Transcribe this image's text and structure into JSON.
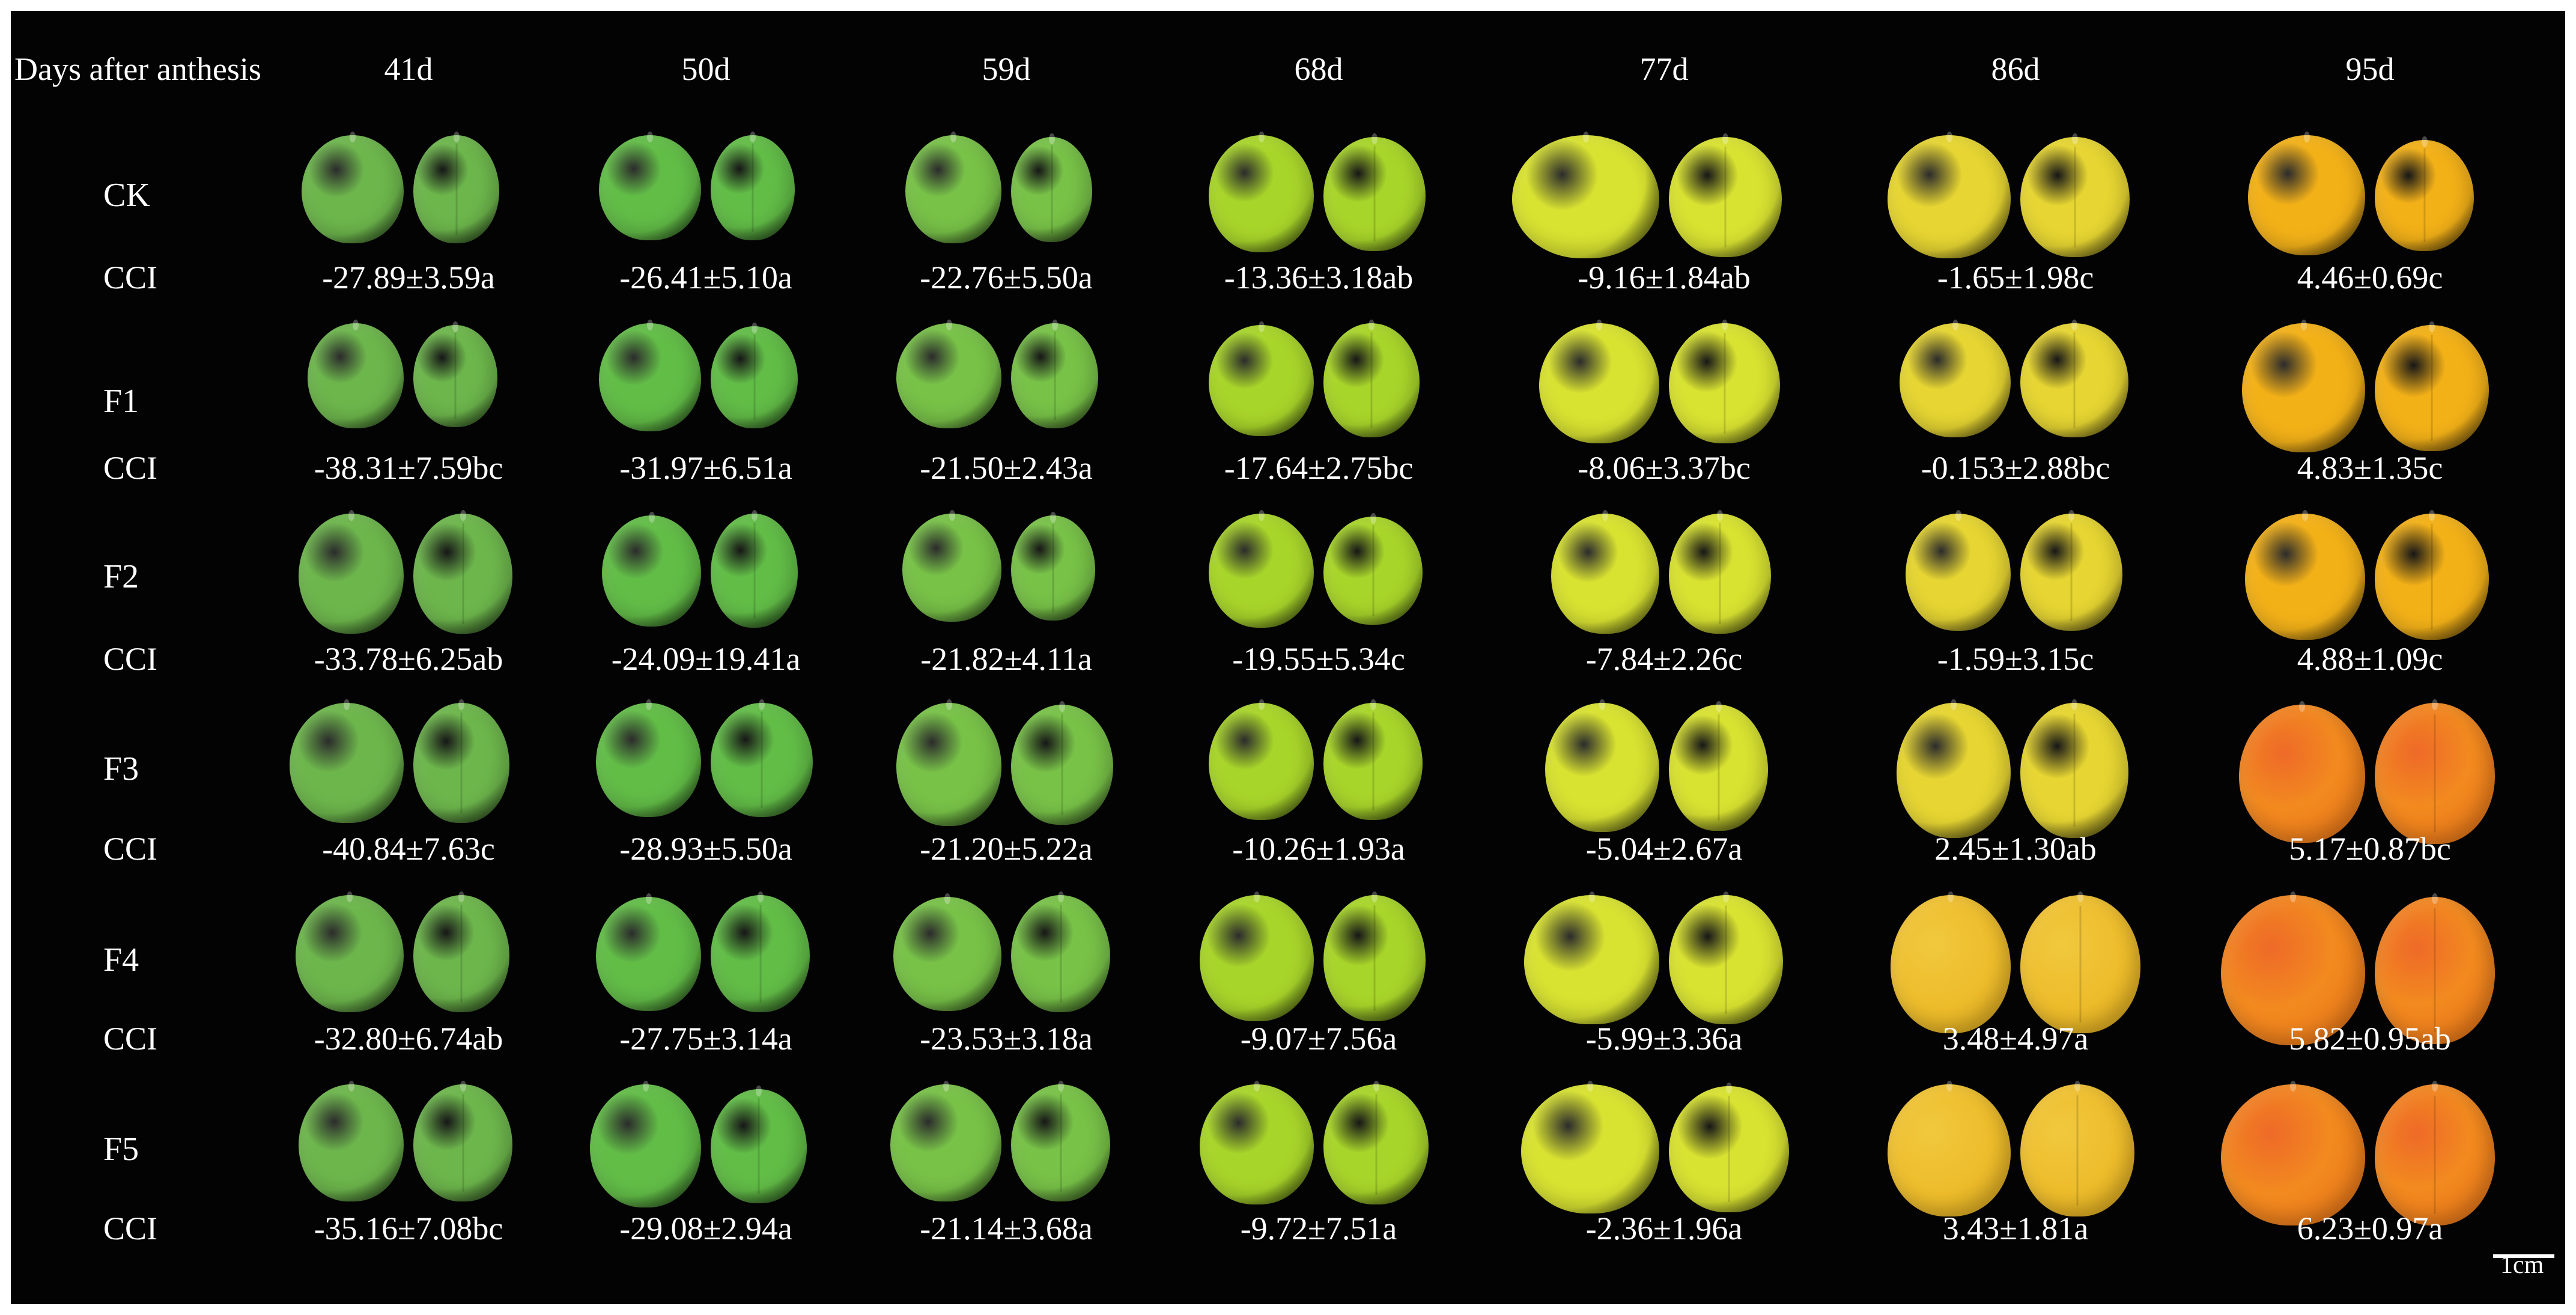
{
  "header": {
    "label": "Days after anthesis",
    "days": [
      "41d",
      "50d",
      "59d",
      "68d",
      "77d",
      "86d",
      "95d"
    ]
  },
  "cci_label": "CCI",
  "scale_label": "1cm",
  "rows": [
    {
      "treatment": "CK",
      "cci": [
        "-27.89±3.59a",
        "-26.41±5.10a",
        "-22.76±5.50a",
        "-13.36±3.18ab",
        "-9.16±1.84ab",
        "-1.65±1.98c",
        "4.46±0.69c"
      ]
    },
    {
      "treatment": "F1",
      "cci": [
        "-38.31±7.59bc",
        "-31.97±6.51a",
        "-21.50±2.43a",
        "-17.64±2.75bc",
        "-8.06±3.37bc",
        "-0.153±2.88bc",
        "4.83±1.35c"
      ]
    },
    {
      "treatment": "F2",
      "cci": [
        "-33.78±6.25ab",
        "-24.09±19.41a",
        "-21.82±4.11a",
        "-19.55±5.34c",
        "-7.84±2.26c",
        "-1.59±3.15c",
        "4.88±1.09c"
      ]
    },
    {
      "treatment": "F3",
      "cci": [
        "-40.84±7.63c",
        "-28.93±5.50a",
        "-21.20±5.22a",
        "-10.26±1.93a",
        "-5.04±2.67a",
        "2.45±1.30ab",
        "5.17±0.87bc"
      ]
    },
    {
      "treatment": "F4",
      "cci": [
        "-32.80±6.74ab",
        "-27.75±3.14a",
        "-23.53±3.18a",
        "-9.07±7.56a",
        "-5.99±3.36a",
        "3.48±4.97a",
        "5.82±0.95ab"
      ]
    },
    {
      "treatment": "F5",
      "cci": [
        "-35.16±7.08bc",
        "-29.08±2.94a",
        "-21.14±3.68a",
        "-9.72±7.51a",
        "-2.36±1.96a",
        "3.43±1.81a",
        "6.23±0.97a"
      ]
    }
  ],
  "colors": {
    "background": "#030303",
    "text": "#ffffff",
    "fruit_stage_palette": [
      "#6db64c",
      "#62bd47",
      "#78c248",
      "#a8d52a",
      "#d8e231",
      "#e6d532",
      "#f3b118"
    ],
    "late_stage_blush": "#ee6a28"
  }
}
